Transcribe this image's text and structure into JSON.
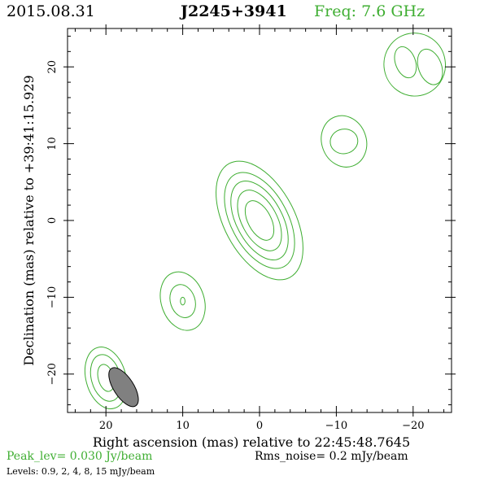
{
  "header": {
    "date": "2015.08.31",
    "source": "J2245+3941",
    "freq": "Freq: 7.6 GHz"
  },
  "footer": {
    "peak": "Peak_lev=  0.030 Jy/beam",
    "rms": "Rms_noise=   0.2 mJy/beam",
    "levels": "Levels: 0.9,    2,    4,    8,   15 mJy/beam"
  },
  "colors": {
    "contour": "#3fae32",
    "beam_fill": "#808080",
    "axis": "#000000",
    "freq_text": "#3fae32"
  },
  "chart_data": {
    "type": "contour",
    "xlabel": "Right ascension (mas) relative to 22:45:48.7645",
    "ylabel": "Declination (mas) relative to +39:41:15.929",
    "xlim": [
      25,
      -25
    ],
    "ylim": [
      -25,
      25
    ],
    "xticks": [
      20,
      10,
      0,
      -10,
      -20
    ],
    "xtick_labels": [
      "20",
      "10",
      "0",
      "−10",
      "−20"
    ],
    "yticks": [
      20,
      10,
      0,
      -10,
      -20
    ],
    "ytick_labels": [
      "20",
      "10",
      "0",
      "−10",
      "−20"
    ],
    "levels_mJy": [
      0.9,
      2,
      4,
      8,
      15
    ],
    "peak_Jy_per_beam": 0.03,
    "rms_noise_mJy_per_beam": 0.2,
    "components": [
      {
        "ra": 0,
        "dec": 0,
        "contours": [
          {
            "rx": 4.6,
            "ry": 8.4,
            "rot": -28
          },
          {
            "rx": 3.7,
            "ry": 6.8,
            "rot": -28
          },
          {
            "rx": 3.0,
            "ry": 5.6,
            "rot": -28
          },
          {
            "rx": 2.3,
            "ry": 4.3,
            "rot": -28
          },
          {
            "rx": 1.5,
            "ry": 2.8,
            "rot": -28
          }
        ]
      },
      {
        "ra": 10,
        "dec": -10.5,
        "contours": [
          {
            "rx": 2.8,
            "ry": 3.9,
            "rot": -18
          },
          {
            "rx": 1.6,
            "ry": 2.2,
            "rot": -18
          },
          {
            "rx": 0.3,
            "ry": 0.5,
            "rot": 0
          }
        ]
      },
      {
        "ra": 20,
        "dec": -20.5,
        "contours": [
          {
            "rx": 2.6,
            "ry": 4.1,
            "rot": -15
          },
          {
            "rx": 1.9,
            "ry": 3.1,
            "rot": -15
          },
          {
            "rx": 1.0,
            "ry": 1.8,
            "rot": -15
          }
        ]
      },
      {
        "ra": -11,
        "dec": 10.3,
        "contours": [
          {
            "rx": 2.9,
            "ry": 3.4,
            "rot": -20
          },
          {
            "rx": 1.8,
            "ry": 1.6,
            "rot": -10
          }
        ]
      },
      {
        "ra": -20.2,
        "dec": 20.3,
        "contours": [
          {
            "rx": 4.0,
            "ry": 4.1,
            "rot": -10
          }
        ]
      },
      {
        "ra": -19,
        "dec": 20.6,
        "contours": [
          {
            "rx": 1.3,
            "ry": 2.1,
            "rot": -20
          }
        ]
      },
      {
        "ra": -22.2,
        "dec": 20.0,
        "contours": [
          {
            "rx": 1.5,
            "ry": 2.4,
            "rot": -20
          }
        ]
      }
    ],
    "beam": {
      "ra": 17.7,
      "dec": -21.7,
      "rx": 1.3,
      "ry": 2.9,
      "rot": -33
    }
  }
}
